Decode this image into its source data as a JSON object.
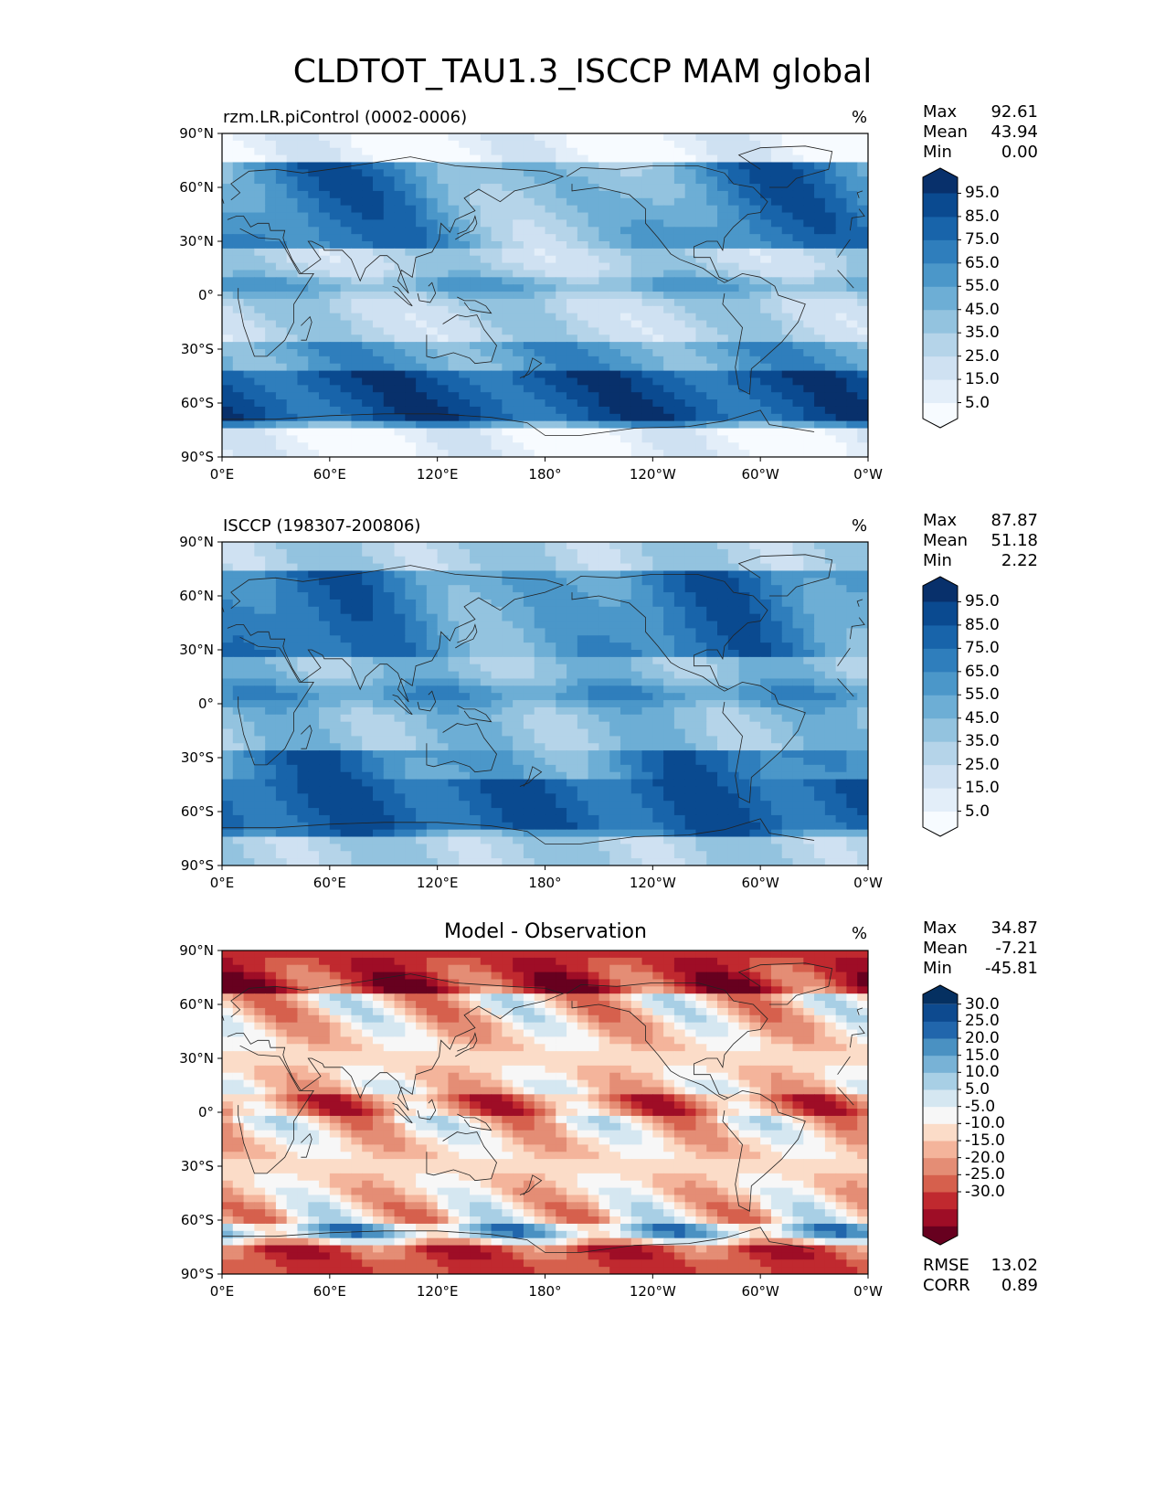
{
  "title": "CLDTOT_TAU1.3_ISCCP MAM global",
  "chart_data": [
    {
      "type": "heatmap",
      "panel": "model",
      "left_label": "rzm.LR.piControl (0002-0006)",
      "center_title": "",
      "unit": "%",
      "stats": [
        {
          "label": "Max",
          "value": "92.61"
        },
        {
          "label": "Mean",
          "value": "43.94"
        },
        {
          "label": "Min",
          "value": "0.00"
        }
      ],
      "colorbar_labels": [
        "95.0",
        "85.0",
        "75.0",
        "65.0",
        "55.0",
        "45.0",
        "35.0",
        "25.0",
        "15.0",
        "5.0"
      ],
      "colorbar_colors": [
        "#f7fbff",
        "#e3eef9",
        "#cfe1f2",
        "#b5d4e9",
        "#93c3df",
        "#6daed5",
        "#4b97c9",
        "#2f7ebc",
        "#1864aa",
        "#0a4a90",
        "#08306b"
      ],
      "lat_ticks": [
        "90°N",
        "60°N",
        "30°N",
        "0°",
        "30°S",
        "60°S",
        "90°S"
      ],
      "lon_ticks": [
        "0°E",
        "60°E",
        "120°E",
        "180°",
        "120°W",
        "60°W",
        "0°W"
      ]
    },
    {
      "type": "heatmap",
      "panel": "observation",
      "left_label": "ISCCP (198307-200806)",
      "center_title": "",
      "unit": "%",
      "stats": [
        {
          "label": "Max",
          "value": "87.87"
        },
        {
          "label": "Mean",
          "value": "51.18"
        },
        {
          "label": "Min",
          "value": "2.22"
        }
      ],
      "colorbar_labels": [
        "95.0",
        "85.0",
        "75.0",
        "65.0",
        "55.0",
        "45.0",
        "35.0",
        "25.0",
        "15.0",
        "5.0"
      ],
      "colorbar_colors": [
        "#f7fbff",
        "#e3eef9",
        "#cfe1f2",
        "#b5d4e9",
        "#93c3df",
        "#6daed5",
        "#4b97c9",
        "#2f7ebc",
        "#1864aa",
        "#0a4a90",
        "#08306b"
      ],
      "lat_ticks": [
        "90°N",
        "60°N",
        "30°N",
        "0°",
        "30°S",
        "60°S",
        "90°S"
      ],
      "lon_ticks": [
        "0°E",
        "60°E",
        "120°E",
        "180°",
        "120°W",
        "60°W",
        "0°W"
      ]
    },
    {
      "type": "heatmap",
      "panel": "difference",
      "left_label": "",
      "center_title": "Model - Observation",
      "unit": "%",
      "stats": [
        {
          "label": "Max",
          "value": "34.87"
        },
        {
          "label": "Mean",
          "value": "-7.21"
        },
        {
          "label": "Min",
          "value": "-45.81"
        }
      ],
      "colorbar_labels": [
        "30.0",
        "25.0",
        "20.0",
        "15.0",
        "10.0",
        "5.0",
        "-5.0",
        "-10.0",
        "-15.0",
        "-20.0",
        "-25.0",
        "-30.0"
      ],
      "colorbar_colors": [
        "#67001f",
        "#9e0d26",
        "#c0292f",
        "#d6604d",
        "#e48d75",
        "#f4b49b",
        "#fbdcc8",
        "#f7f7f7",
        "#d5e7f1",
        "#a8cfe5",
        "#78b2d6",
        "#4a91c2",
        "#2166ac",
        "#0d4a8f",
        "#053061"
      ],
      "extra_stats": [
        {
          "label": "RMSE",
          "value": "13.02"
        },
        {
          "label": "CORR",
          "value": "0.89"
        }
      ],
      "lat_ticks": [
        "90°N",
        "60°N",
        "30°N",
        "0°",
        "30°S",
        "60°S",
        "90°S"
      ],
      "lon_ticks": [
        "0°E",
        "60°E",
        "120°E",
        "180°",
        "120°W",
        "60°W",
        "0°W"
      ]
    }
  ]
}
